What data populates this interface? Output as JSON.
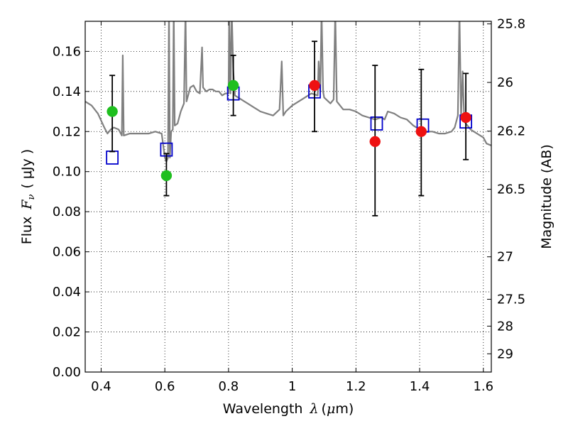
{
  "chart_data": {
    "type": "scatter",
    "xlabel_parts": {
      "text": "Wavelength",
      "symbol": "λ",
      "unit_open": "(",
      "unit_mu": "μ",
      "unit_rest": "m)"
    },
    "ylabel_parts": {
      "text": "Flux",
      "symbol": "F",
      "subscript": "ν",
      "unit": "( μJy )"
    },
    "y2label": "Magnitude (AB)",
    "xlim": [
      0.35,
      1.625
    ],
    "ylim": [
      0.0,
      0.175
    ],
    "grid": true,
    "x_ticks": [
      0.4,
      0.6,
      0.8,
      1.0,
      1.2,
      1.4,
      1.6
    ],
    "x_tick_labels": [
      "0.4",
      "0.6",
      "0.8",
      "1",
      "1.2",
      "1.4",
      "1.6"
    ],
    "y_ticks": [
      0.0,
      0.02,
      0.04,
      0.06,
      0.08,
      0.1,
      0.12,
      0.14,
      0.16
    ],
    "y_tick_labels": [
      "0.00",
      "0.02",
      "0.04",
      "0.06",
      "0.08",
      "0.10",
      "0.12",
      "0.14",
      "0.16"
    ],
    "y2_ticks": [
      {
        "label": "25.8",
        "flux": 0.1737
      },
      {
        "label": "26",
        "flux": 0.1445
      },
      {
        "label": "26.2",
        "flux": 0.1202
      },
      {
        "label": "26.5",
        "flux": 0.0912
      },
      {
        "label": "27",
        "flux": 0.0575
      },
      {
        "label": "27.5",
        "flux": 0.0363
      },
      {
        "label": "28",
        "flux": 0.0229
      },
      {
        "label": "29",
        "flux": 0.0091
      }
    ],
    "series": [
      {
        "kind": "line",
        "color": "#808080",
        "points": [
          [
            0.35,
            0.135
          ],
          [
            0.37,
            0.133
          ],
          [
            0.39,
            0.129
          ],
          [
            0.41,
            0.122
          ],
          [
            0.42,
            0.119
          ],
          [
            0.43,
            0.121
          ],
          [
            0.44,
            0.122
          ],
          [
            0.455,
            0.121
          ],
          [
            0.465,
            0.118
          ],
          [
            0.468,
            0.158
          ],
          [
            0.471,
            0.118
          ],
          [
            0.49,
            0.119
          ],
          [
            0.51,
            0.119
          ],
          [
            0.53,
            0.119
          ],
          [
            0.55,
            0.119
          ],
          [
            0.57,
            0.12
          ],
          [
            0.59,
            0.119
          ],
          [
            0.6,
            0.107
          ],
          [
            0.605,
            0.105
          ],
          [
            0.61,
            0.107
          ],
          [
            0.613,
            0.18
          ],
          [
            0.616,
            0.107
          ],
          [
            0.62,
            0.12
          ],
          [
            0.625,
            0.121
          ],
          [
            0.628,
            0.18
          ],
          [
            0.631,
            0.123
          ],
          [
            0.64,
            0.124
          ],
          [
            0.65,
            0.13
          ],
          [
            0.66,
            0.134
          ],
          [
            0.665,
            0.18
          ],
          [
            0.668,
            0.135
          ],
          [
            0.68,
            0.142
          ],
          [
            0.69,
            0.143
          ],
          [
            0.7,
            0.14
          ],
          [
            0.71,
            0.139
          ],
          [
            0.717,
            0.162
          ],
          [
            0.72,
            0.142
          ],
          [
            0.73,
            0.14
          ],
          [
            0.74,
            0.141
          ],
          [
            0.75,
            0.141
          ],
          [
            0.76,
            0.14
          ],
          [
            0.77,
            0.14
          ],
          [
            0.78,
            0.138
          ],
          [
            0.79,
            0.139
          ],
          [
            0.8,
            0.139
          ],
          [
            0.802,
            0.18
          ],
          [
            0.806,
            0.139
          ],
          [
            0.81,
            0.18
          ],
          [
            0.815,
            0.15
          ],
          [
            0.82,
            0.138
          ],
          [
            0.83,
            0.137
          ],
          [
            0.84,
            0.136
          ],
          [
            0.85,
            0.135
          ],
          [
            0.86,
            0.134
          ],
          [
            0.87,
            0.133
          ],
          [
            0.88,
            0.132
          ],
          [
            0.89,
            0.131
          ],
          [
            0.9,
            0.13
          ],
          [
            0.92,
            0.129
          ],
          [
            0.94,
            0.128
          ],
          [
            0.96,
            0.131
          ],
          [
            0.967,
            0.155
          ],
          [
            0.972,
            0.128
          ],
          [
            0.98,
            0.13
          ],
          [
            1.0,
            0.133
          ],
          [
            1.02,
            0.135
          ],
          [
            1.04,
            0.137
          ],
          [
            1.06,
            0.139
          ],
          [
            1.08,
            0.138
          ],
          [
            1.083,
            0.155
          ],
          [
            1.088,
            0.14
          ],
          [
            1.092,
            0.18
          ],
          [
            1.097,
            0.14
          ],
          [
            1.1,
            0.137
          ],
          [
            1.12,
            0.134
          ],
          [
            1.13,
            0.136
          ],
          [
            1.135,
            0.18
          ],
          [
            1.14,
            0.135
          ],
          [
            1.16,
            0.131
          ],
          [
            1.18,
            0.131
          ],
          [
            1.2,
            0.13
          ],
          [
            1.22,
            0.128
          ],
          [
            1.24,
            0.127
          ],
          [
            1.26,
            0.126
          ],
          [
            1.28,
            0.127
          ],
          [
            1.29,
            0.126
          ],
          [
            1.3,
            0.13
          ],
          [
            1.32,
            0.129
          ],
          [
            1.34,
            0.127
          ],
          [
            1.36,
            0.126
          ],
          [
            1.38,
            0.123
          ],
          [
            1.4,
            0.121
          ],
          [
            1.42,
            0.12
          ],
          [
            1.44,
            0.12
          ],
          [
            1.46,
            0.119
          ],
          [
            1.48,
            0.119
          ],
          [
            1.5,
            0.12
          ],
          [
            1.51,
            0.122
          ],
          [
            1.52,
            0.128
          ],
          [
            1.525,
            0.18
          ],
          [
            1.53,
            0.127
          ],
          [
            1.535,
            0.15
          ],
          [
            1.54,
            0.125
          ],
          [
            1.56,
            0.121
          ],
          [
            1.58,
            0.119
          ],
          [
            1.6,
            0.117
          ],
          [
            1.61,
            0.114
          ],
          [
            1.625,
            0.113
          ]
        ]
      },
      {
        "kind": "markers-open-square",
        "color": "#0000cc",
        "x": [
          0.435,
          0.605,
          0.815,
          1.07,
          1.265,
          1.41,
          1.545
        ],
        "y": [
          0.107,
          0.111,
          0.139,
          0.14,
          0.124,
          0.123,
          0.125
        ]
      },
      {
        "kind": "markers-filled-circle",
        "color": "#1fbf1f",
        "x": [
          0.435,
          0.605,
          0.815
        ],
        "y": [
          0.13,
          0.098,
          0.143
        ],
        "err_low": [
          0.11,
          0.088,
          0.128
        ],
        "err_high": [
          0.148,
          0.109,
          0.158
        ]
      },
      {
        "kind": "markers-filled-circle",
        "color": "#ee1111",
        "x": [
          1.07,
          1.26,
          1.405,
          1.545
        ],
        "y": [
          0.143,
          0.115,
          0.12,
          0.127
        ],
        "err_low": [
          0.12,
          0.078,
          0.088,
          0.106
        ],
        "err_high": [
          0.165,
          0.153,
          0.151,
          0.149
        ]
      }
    ]
  }
}
